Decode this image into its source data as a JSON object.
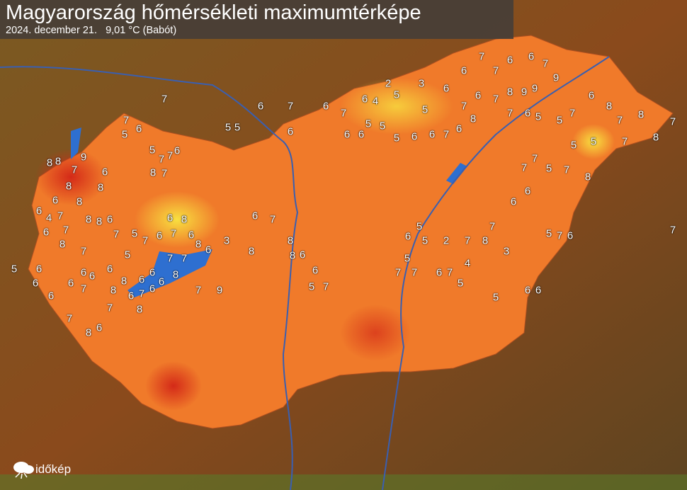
{
  "header": {
    "title": "Magyarország hőmérsékleti maximumtérképe",
    "subtitle": "2024. december 21.   9,01 °C (Babót)"
  },
  "logo": {
    "text": "időkép",
    "icon": "cloud-sun-icon"
  },
  "colors": {
    "background": "#6b4a1e",
    "country_warm": "#f07a2a",
    "country_hot": "#d62a1a",
    "country_cool": "#f5d23a",
    "water": "#2e6fd0",
    "rivers": "#3a5fb0"
  },
  "station_values": [
    "7",
    "6",
    "7",
    "5",
    "5",
    "6",
    "6",
    "7",
    "6",
    "4",
    "2",
    "3",
    "5",
    "5",
    "6",
    "6",
    "7",
    "7",
    "6",
    "6",
    "7",
    "9",
    "9",
    "9",
    "8",
    "7",
    "6",
    "7",
    "8",
    "6",
    "7",
    "6",
    "6",
    "5",
    "5",
    "5",
    "6",
    "6",
    "5",
    "5",
    "5",
    "5",
    "6",
    "7",
    "7",
    "6",
    "8",
    "7",
    "8",
    "7",
    "8",
    "7",
    "8",
    "7",
    "5",
    "7",
    "7",
    "6",
    "6",
    "7",
    "8",
    "7",
    "2",
    "5",
    "5",
    "6",
    "5",
    "7",
    "7",
    "6",
    "7",
    "5",
    "4",
    "5",
    "3",
    "6",
    "6",
    "5",
    "7",
    "6",
    "7",
    "7",
    "6",
    "5",
    "5",
    "7",
    "7",
    "6",
    "8",
    "7",
    "9",
    "7",
    "6",
    "8",
    "8",
    "8",
    "8",
    "8",
    "6",
    "4",
    "6",
    "7",
    "7",
    "8",
    "8",
    "6",
    "7",
    "5",
    "7",
    "6",
    "6",
    "7",
    "8",
    "6",
    "8",
    "7",
    "7",
    "8",
    "6",
    "6",
    "7",
    "6",
    "8",
    "8",
    "8",
    "6",
    "6",
    "7",
    "8",
    "6",
    "7",
    "6",
    "6",
    "6",
    "7",
    "6",
    "6",
    "5",
    "6",
    "6",
    "8",
    "7",
    "6",
    "5",
    "6",
    "3",
    "7",
    "9",
    "8",
    "6",
    "7",
    "8",
    "8",
    "6",
    "6",
    "5",
    "7"
  ]
}
